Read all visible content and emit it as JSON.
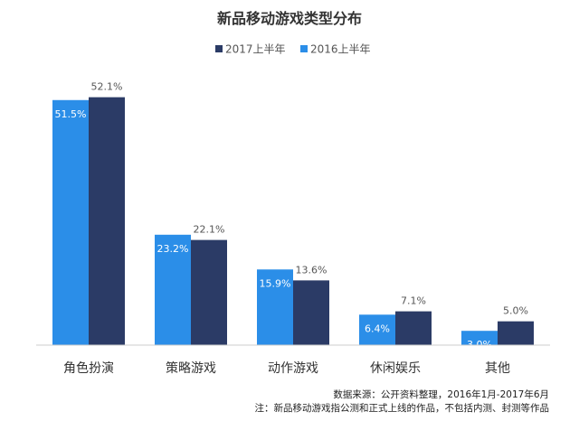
{
  "chart_data": {
    "type": "bar",
    "title": "新品移动游戏类型分布",
    "categories": [
      "角色扮演",
      "策略游戏",
      "动作游戏",
      "休闲娱乐",
      "其他"
    ],
    "series": [
      {
        "name": "2017上半年",
        "color": "#2b3b66",
        "values": [
          52.1,
          22.1,
          13.6,
          7.1,
          5.0
        ],
        "labels": [
          "52.1%",
          "22.1%",
          "13.6%",
          "7.1%",
          "5.0%"
        ]
      },
      {
        "name": "2016上半年",
        "color": "#2b8ee8",
        "values": [
          51.5,
          23.2,
          15.9,
          6.4,
          3.0
        ],
        "labels": [
          "51.5%",
          "23.2%",
          "15.9%",
          "6.4%",
          "3.0%"
        ]
      }
    ],
    "ylim": [
      0,
      60
    ],
    "grid": false,
    "legend_position": "top-center",
    "xlabel": "",
    "ylabel": ""
  },
  "footnotes": {
    "source": "数据来源：公开资料整理，2016年1月-2017年6月",
    "note": "注：新品移动游戏指公测和正式上线的作品，不包括内测、封测等作品"
  }
}
